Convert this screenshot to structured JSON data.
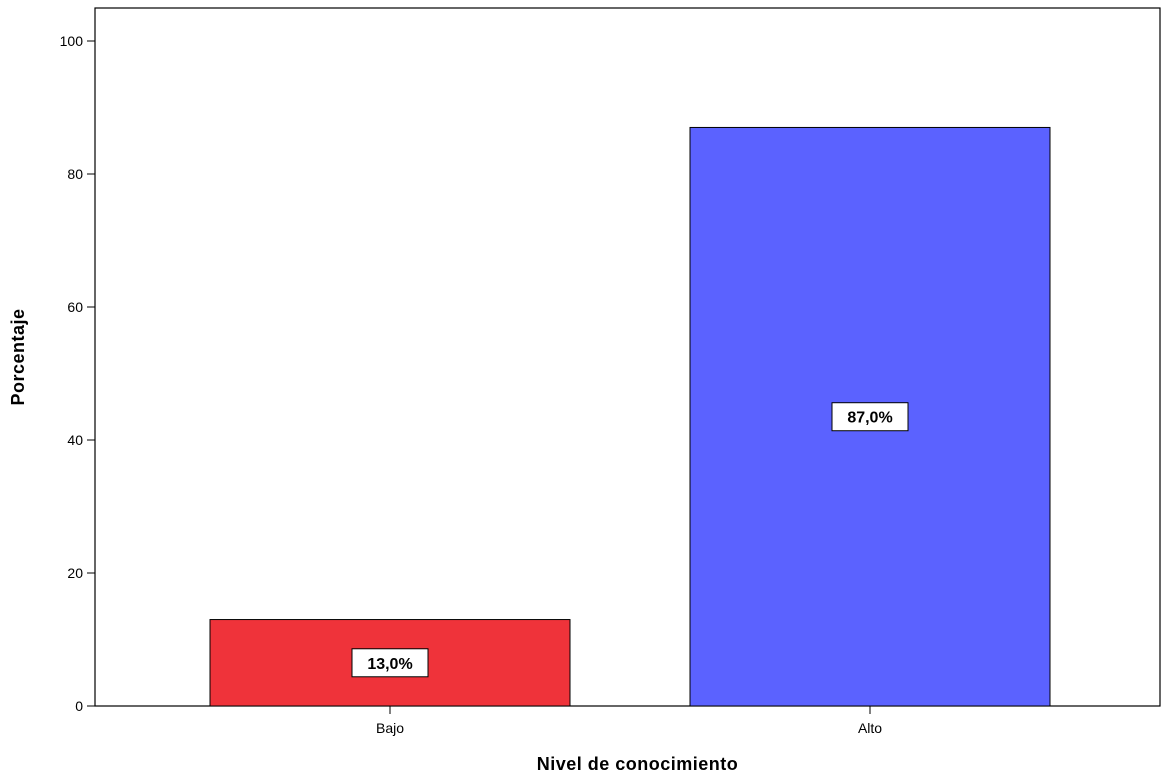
{
  "chart_data": {
    "type": "bar",
    "categories": [
      "Bajo",
      "Alto"
    ],
    "values": [
      13.0,
      87.0
    ],
    "data_labels": [
      "13,0%",
      "87,0%"
    ],
    "colors": [
      "#ef333a",
      "#5b62ff"
    ],
    "xlabel": "Nivel de conocimiento",
    "ylabel": "Porcentaje",
    "ylim": [
      0,
      100
    ],
    "yticks": [
      0,
      20,
      40,
      60,
      80,
      100
    ],
    "ytick_labels": [
      "0",
      "20",
      "40",
      "60",
      "80",
      "100"
    ],
    "grid": false,
    "legend": "none"
  }
}
